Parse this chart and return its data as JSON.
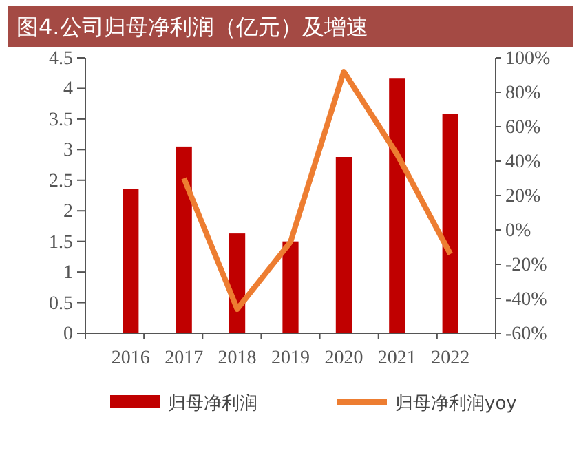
{
  "chart_data": {
    "type": "bar",
    "title": "图4.公司归母净利润（亿元）及增速",
    "categories": [
      "2016",
      "2017",
      "2018",
      "2019",
      "2020",
      "2021",
      "2022"
    ],
    "series": [
      {
        "name": "归母净利润",
        "color": "#c00000",
        "values": [
          2.36,
          3.05,
          1.63,
          1.5,
          2.88,
          4.16,
          3.58
        ]
      },
      {
        "name": "归母净利润yoy",
        "type": "line",
        "axis": "y2",
        "color": "#ed7d31",
        "values": [
          null,
          30,
          -46,
          -7,
          92,
          44,
          -14
        ]
      }
    ],
    "ylim": [
      0,
      4.5
    ],
    "yticks": [
      0,
      0.5,
      1,
      1.5,
      2,
      2.5,
      3,
      3.5,
      4,
      4.5
    ],
    "y2lim": [
      -60,
      100
    ],
    "y2ticks": [
      {
        "value": -60,
        "label": "-60%"
      },
      {
        "value": -40,
        "label": "-40%"
      },
      {
        "value": -20,
        "label": "-20%"
      },
      {
        "value": 0,
        "label": "0%"
      },
      {
        "value": 20,
        "label": "20%"
      },
      {
        "value": 40,
        "label": "40%"
      },
      {
        "value": 60,
        "label": "60%"
      },
      {
        "value": 80,
        "label": "80%"
      },
      {
        "value": 100,
        "label": "100%"
      }
    ],
    "legend": "bottom",
    "grid": false,
    "marker": "none",
    "line_style": "solid"
  }
}
